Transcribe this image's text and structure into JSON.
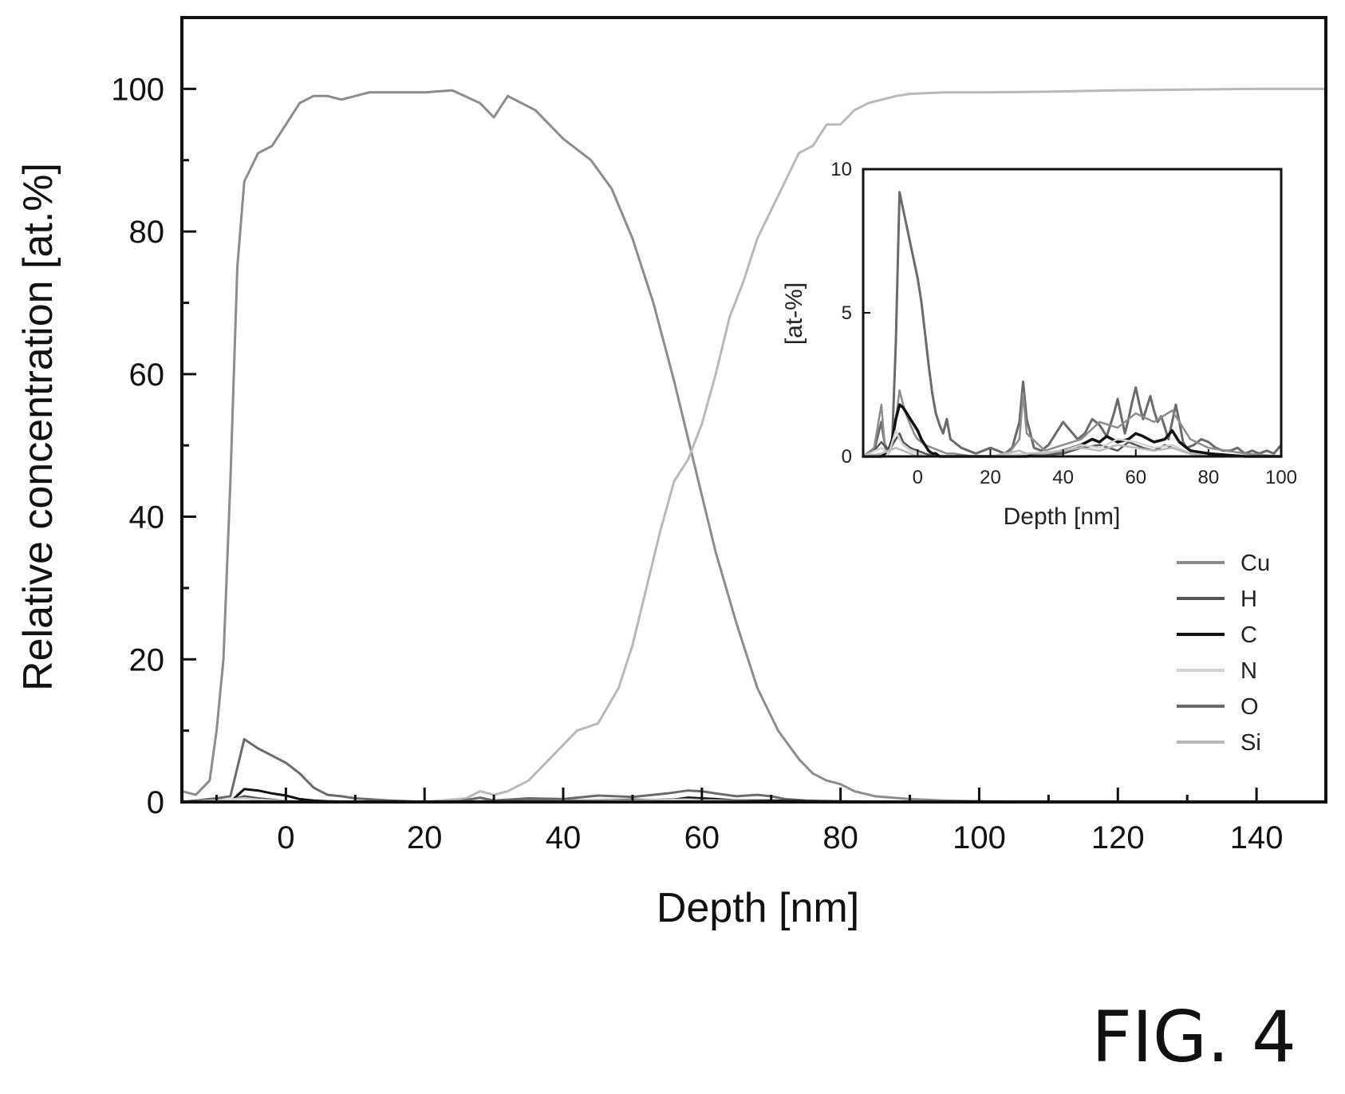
{
  "figure_label": "FIG. 4",
  "chart_data": [
    {
      "id": "main",
      "type": "line",
      "xlabel": "Depth [nm]",
      "ylabel": "Relative concentration [at.%]",
      "xlim": [
        -15,
        150
      ],
      "ylim": [
        0,
        110
      ],
      "xticks": [
        0,
        20,
        40,
        60,
        80,
        100,
        120,
        140
      ],
      "yticks": [
        0,
        20,
        40,
        60,
        80,
        100
      ],
      "legend_position": "lower-right",
      "series": [
        {
          "name": "Cu",
          "color": "#8c8c8c",
          "width": 3,
          "x": [
            -15,
            -13,
            -11,
            -10,
            -9,
            -8,
            -7,
            -6,
            -4,
            -2,
            0,
            2,
            4,
            6,
            8,
            10,
            12,
            16,
            20,
            24,
            28,
            30,
            32,
            36,
            40,
            44,
            47,
            50,
            53,
            56,
            59,
            62,
            65,
            68,
            71,
            74,
            76,
            78,
            80,
            82,
            85,
            90,
            95,
            100,
            110,
            120,
            130,
            140,
            150
          ],
          "y": [
            1.5,
            1,
            3,
            10,
            20,
            45,
            75,
            87,
            91,
            92,
            95,
            98,
            99,
            99,
            98.5,
            99,
            99.5,
            99.5,
            99.5,
            99.8,
            98,
            96,
            99,
            97,
            93,
            90,
            86,
            79,
            70,
            59,
            47,
            35,
            25,
            16,
            10,
            6,
            4,
            3,
            2.5,
            1.5,
            0.8,
            0.4,
            0.2,
            0.1,
            0,
            0,
            0,
            0,
            0
          ]
        },
        {
          "name": "Si",
          "color": "#b8b8b8",
          "width": 3,
          "x": [
            -15,
            -10,
            -5,
            0,
            5,
            10,
            20,
            26,
            28,
            30,
            32,
            35,
            38,
            40,
            42,
            45,
            48,
            50,
            52,
            54,
            56,
            58,
            60,
            62,
            64,
            66,
            68,
            70,
            72,
            74,
            76,
            78,
            80,
            82,
            84,
            86,
            88,
            90,
            95,
            100,
            110,
            120,
            130,
            140,
            150
          ],
          "y": [
            0,
            0,
            0,
            0,
            0,
            0,
            0,
            0.5,
            1.5,
            1,
            1.5,
            3,
            6,
            8,
            10,
            11,
            16,
            22,
            30,
            38,
            45,
            48,
            53,
            60,
            68,
            73,
            79,
            83,
            87,
            91,
            92,
            95,
            95,
            97,
            98,
            98.5,
            99,
            99.3,
            99.5,
            99.5,
            99.6,
            99.8,
            99.9,
            100,
            100
          ]
        },
        {
          "name": "O",
          "color": "#6a6a6a",
          "width": 3,
          "x": [
            -15,
            -10,
            -8,
            -6,
            -4,
            -2,
            0,
            2,
            4,
            6,
            8,
            10,
            15,
            20,
            25,
            28,
            30,
            35,
            40,
            45,
            50,
            55,
            58,
            60,
            62,
            65,
            68,
            70,
            72,
            75,
            80,
            90,
            100,
            120,
            150
          ],
          "y": [
            0,
            0.5,
            0.8,
            8.8,
            7.5,
            6.5,
            5.5,
            4,
            2,
            1,
            0.8,
            0.5,
            0.2,
            0,
            0.1,
            0.6,
            0.2,
            0.5,
            0.4,
            0.9,
            0.7,
            1.2,
            1.6,
            1.5,
            1.2,
            0.8,
            1,
            0.8,
            0.4,
            0.2,
            0.1,
            0,
            0,
            0,
            0
          ]
        },
        {
          "name": "C",
          "color": "#111111",
          "width": 3,
          "x": [
            -15,
            -8,
            -6,
            -4,
            -2,
            0,
            2,
            4,
            6,
            10,
            20,
            40,
            50,
            55,
            58,
            60,
            62,
            65,
            70,
            75,
            80,
            100,
            150
          ],
          "y": [
            0,
            0,
            1.8,
            1.6,
            1.2,
            0.9,
            0.4,
            0.2,
            0.1,
            0,
            0,
            0.1,
            0.3,
            0.2,
            0.6,
            0.5,
            0.4,
            0.2,
            0.2,
            0.1,
            0,
            0,
            0
          ]
        },
        {
          "name": "H",
          "color": "#555555",
          "width": 3,
          "x": [
            -15,
            -10,
            -8,
            -6,
            -4,
            -2,
            0,
            5,
            10,
            20,
            40,
            50,
            58,
            60,
            65,
            70,
            80,
            100,
            150
          ],
          "y": [
            0,
            0.3,
            0.2,
            0.8,
            0.5,
            0.3,
            0.1,
            0,
            0,
            0,
            0.2,
            0.2,
            0.4,
            0.3,
            0.2,
            0.1,
            0,
            0,
            0
          ]
        },
        {
          "name": "N",
          "color": "#d2d2d2",
          "width": 3,
          "x": [
            -15,
            -10,
            -6,
            -4,
            0,
            5,
            20,
            40,
            50,
            58,
            60,
            65,
            70,
            80,
            150
          ],
          "y": [
            0,
            0.2,
            0.5,
            0.3,
            0.1,
            0,
            0,
            0.1,
            0.2,
            0.3,
            0.2,
            0.1,
            0,
            0,
            0
          ]
        }
      ]
    },
    {
      "id": "inset",
      "type": "line",
      "xlabel": "Depth [nm]",
      "ylabel": "[at-%]",
      "xlim": [
        -15,
        100
      ],
      "ylim": [
        0,
        10
      ],
      "xticks": [
        0,
        20,
        40,
        60,
        80,
        100
      ],
      "yticks": [
        0,
        5,
        10
      ],
      "series": [
        {
          "name": "O",
          "color": "#6a6a6a",
          "width": 3,
          "x": [
            -15,
            -12,
            -10,
            -9,
            -8,
            -7,
            -6,
            -5,
            -4,
            -3,
            -2,
            -1,
            0,
            1,
            2,
            3,
            4,
            5,
            6,
            7,
            8,
            9,
            10,
            12,
            14,
            16,
            18,
            20,
            22,
            24,
            26,
            28,
            29,
            30,
            32,
            34,
            36,
            38,
            40,
            42,
            44,
            46,
            48,
            50,
            52,
            54,
            55,
            56,
            57,
            58,
            59,
            60,
            61,
            62,
            63,
            64,
            65,
            66,
            67,
            68,
            69,
            70,
            71,
            72,
            73,
            74,
            76,
            78,
            80,
            82,
            84,
            86,
            88,
            90,
            92,
            94,
            96,
            98,
            100
          ],
          "y": [
            0,
            0.2,
            1.2,
            0.4,
            0.2,
            0.6,
            4,
            9.2,
            8.6,
            8,
            7.4,
            6.8,
            6.2,
            5.4,
            4.3,
            3.2,
            2.2,
            1.5,
            1.1,
            0.8,
            1.3,
            0.6,
            0.5,
            0.3,
            0.2,
            0.1,
            0.2,
            0.3,
            0.2,
            0.1,
            0.3,
            1.2,
            2.6,
            1.3,
            0.3,
            0.2,
            0.4,
            0.8,
            1.2,
            0.9,
            0.6,
            0.8,
            1.3,
            1.1,
            0.7,
            1.5,
            2,
            1.4,
            0.8,
            1.3,
            1.9,
            2.4,
            1.8,
            1.3,
            1.7,
            2.1,
            1.6,
            1.2,
            1.4,
            1,
            0.6,
            1.2,
            1.8,
            1.2,
            0.5,
            0.3,
            0.4,
            0.6,
            0.5,
            0.3,
            0.2,
            0.2,
            0.3,
            0.1,
            0.2,
            0.1,
            0.2,
            0.1,
            0.4
          ]
        },
        {
          "name": "Cu",
          "color": "#8c8c8c",
          "width": 2.5,
          "x": [
            -15,
            -12,
            -10,
            -9,
            -8,
            -7,
            -6,
            -5,
            -4,
            -3,
            -2,
            -1,
            0,
            2,
            4,
            6,
            8,
            10,
            15,
            20,
            25,
            28,
            29,
            30,
            35,
            40,
            45,
            50,
            55,
            60,
            65,
            70,
            75,
            80,
            90,
            100
          ],
          "y": [
            0,
            0.3,
            1.8,
            0.3,
            0.1,
            0.4,
            1.3,
            2.3,
            1.8,
            1.4,
            1.1,
            0.8,
            0.6,
            0.4,
            0.3,
            0.2,
            0.1,
            0.1,
            0,
            0,
            0.1,
            0.6,
            2.2,
            0.8,
            0.2,
            0.4,
            0.6,
            1.2,
            1,
            1.5,
            1.2,
            1.6,
            0.6,
            0.3,
            0.1,
            0
          ]
        },
        {
          "name": "C",
          "color": "#111111",
          "width": 3.5,
          "x": [
            -15,
            -10,
            -8,
            -7,
            -6,
            -5,
            -4,
            -3,
            -2,
            -1,
            0,
            1,
            2,
            3,
            4,
            5,
            6,
            8,
            10,
            20,
            30,
            35,
            40,
            45,
            48,
            50,
            52,
            55,
            58,
            60,
            62,
            65,
            68,
            70,
            72,
            75,
            80,
            90,
            100
          ],
          "y": [
            0,
            0,
            0.2,
            0.6,
            1.3,
            1.8,
            1.7,
            1.5,
            1.3,
            1.1,
            0.9,
            0.6,
            0.4,
            0.2,
            0.1,
            0.1,
            0,
            0,
            0,
            0,
            0,
            0.1,
            0.2,
            0.4,
            0.6,
            0.5,
            0.7,
            0.5,
            0.6,
            0.8,
            0.7,
            0.5,
            0.6,
            0.9,
            0.5,
            0.2,
            0.1,
            0,
            0
          ]
        },
        {
          "name": "H",
          "color": "#555555",
          "width": 2.5,
          "x": [
            -15,
            -12,
            -10,
            -8,
            -6,
            -5,
            -4,
            -2,
            0,
            2,
            5,
            10,
            20,
            30,
            40,
            45,
            50,
            55,
            58,
            60,
            62,
            65,
            68,
            70,
            75,
            80,
            90,
            100
          ],
          "y": [
            0,
            0.2,
            0.5,
            0.2,
            0.6,
            0.8,
            0.5,
            0.3,
            0.2,
            0.1,
            0,
            0,
            0,
            0,
            0.1,
            0.3,
            0.4,
            0.2,
            0.5,
            0.4,
            0.3,
            0.2,
            0.4,
            0.3,
            0.1,
            0,
            0,
            0
          ]
        },
        {
          "name": "N",
          "color": "#d2d2d2",
          "width": 2.5,
          "x": [
            -15,
            -10,
            -8,
            -6,
            -5,
            -4,
            -2,
            0,
            2,
            5,
            10,
            20,
            40,
            45,
            50,
            55,
            60,
            65,
            70,
            75,
            80,
            100
          ],
          "y": [
            0,
            0.3,
            0.1,
            0.9,
            0.6,
            0.4,
            0.2,
            0.1,
            0,
            0,
            0,
            0,
            0.2,
            0.4,
            0.3,
            0.6,
            0.5,
            0.3,
            0.4,
            0.1,
            0,
            0
          ]
        },
        {
          "name": "Si",
          "color": "#b8b8b8",
          "width": 2.5,
          "x": [
            -15,
            -10,
            -8,
            -6,
            -4,
            -2,
            0,
            5,
            10,
            20,
            28,
            30,
            35,
            40,
            45,
            50,
            55,
            60,
            65,
            70,
            75,
            80,
            100
          ],
          "y": [
            0,
            0.1,
            0.2,
            0.3,
            0.2,
            0.1,
            0,
            0,
            0,
            0,
            0.2,
            0.1,
            0.1,
            0.2,
            0.3,
            0.2,
            0.4,
            0.3,
            0.2,
            0.3,
            0.1,
            0,
            0
          ]
        }
      ]
    }
  ],
  "legend": [
    {
      "label": "Cu",
      "color": "#8c8c8c"
    },
    {
      "label": "H",
      "color": "#555555"
    },
    {
      "label": "C",
      "color": "#111111"
    },
    {
      "label": "N",
      "color": "#d2d2d2"
    },
    {
      "label": "O",
      "color": "#6a6a6a"
    },
    {
      "label": "Si",
      "color": "#b8b8b8"
    }
  ]
}
